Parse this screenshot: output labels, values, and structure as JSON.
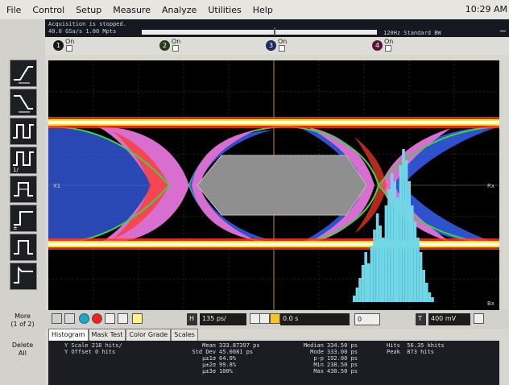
{
  "menu": {
    "items": [
      "File",
      "Control",
      "Setup",
      "Measure",
      "Analyze",
      "Utilities",
      "Help"
    ],
    "clock": "10:29 AM"
  },
  "status": {
    "line1": "Acquisition is stopped.",
    "line2": "40.0 GSa/s  1.00 Mpts",
    "bandwidth": "120Hz Standard BW"
  },
  "channels": [
    {
      "num": "1",
      "label": "On"
    },
    {
      "num": "2",
      "label": "On"
    },
    {
      "num": "3",
      "label": "On"
    },
    {
      "num": "4",
      "label": "On"
    }
  ],
  "left": {
    "more_label": "More",
    "more_sub": "(1 of 2)",
    "delete_label": "Delete",
    "delete_sub": "All"
  },
  "scope": {
    "left_marker": "X1",
    "right_marker": "Rx",
    "bottom_marker": "Bx"
  },
  "controls": {
    "horizontal_button": "H",
    "timebase": "135 ps/",
    "delay": "0.0 s",
    "delay_value": "0",
    "vertical_button": "T",
    "vertical_scale": "400 mV"
  },
  "tabs": [
    "Histogram",
    "Mask Test",
    "Color Grade",
    "Scales"
  ],
  "stats": {
    "y_scale_label": "Y Scale",
    "y_scale_value": "218 hits/",
    "y_offset_label": "Y Offset",
    "y_offset_value": "0 hits",
    "mean_label": "Mean",
    "mean_value": "333.87397 ps",
    "stddev_label": "Std Dev",
    "stddev_value": "45.0081 ps",
    "s1_label": "µ±1σ",
    "s1_value": "64.0%",
    "s2_label": "µ±2σ",
    "s2_value": "99.8%",
    "s3_label": "µ±3σ",
    "s3_value": "100%",
    "median_label": "Median",
    "median_value": "334.50 ps",
    "mode_label": "Mode",
    "mode_value": "333.00 ps",
    "pp_label": "p-p",
    "pp_value": "192.00 ps",
    "min_label": "Min",
    "min_value": "238.50 ps",
    "max_label": "Max",
    "max_value": "430.50 ps",
    "hits_label": "Hits",
    "hits_value": "56.35 khits",
    "peak_label": "Peak",
    "peak_value": "873 hits"
  },
  "colors": {
    "eye_yellow": "#ffe01a",
    "eye_red": "#ff3a2a",
    "eye_pink": "#d86fd0",
    "eye_blue": "#3a66ff",
    "eye_green": "#3fd14b",
    "histogram": "#6fd7e8",
    "mask": "#8f8f8f"
  }
}
